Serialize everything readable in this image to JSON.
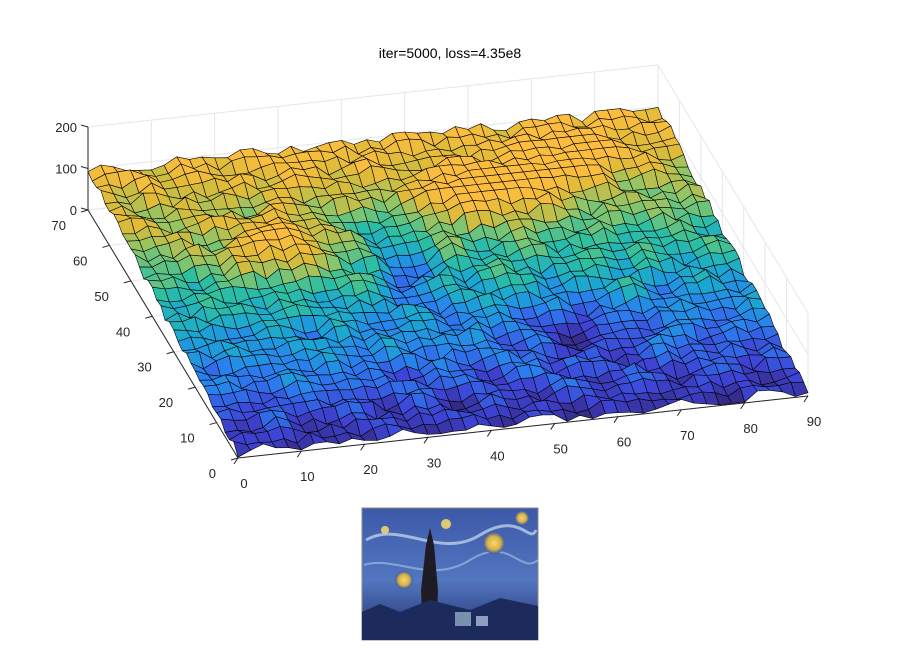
{
  "figure": {
    "title": "iter=5000, loss=4.35e8"
  },
  "chart_data": {
    "type": "surface",
    "title": "iter=5000, loss=4.35e8",
    "xlim": [
      0,
      90
    ],
    "ylim": [
      0,
      70
    ],
    "zlim": [
      0,
      200
    ],
    "x_ticks": [
      "0",
      "10",
      "20",
      "30",
      "40",
      "50",
      "60",
      "70",
      "80",
      "90"
    ],
    "y_ticks": [
      "0",
      "10",
      "20",
      "30",
      "40",
      "50",
      "60",
      "70"
    ],
    "z_ticks": [
      "0",
      "100",
      "200"
    ],
    "grid": true,
    "colormap": "parula",
    "colormap_stops": [
      "#352a87",
      "#3e44d6",
      "#2b7ef0",
      "#1aa6d4",
      "#2cbfa1",
      "#8cc56a",
      "#dcbb38",
      "#fcbd3e"
    ],
    "edge_color": "#000000"
  },
  "inset_image": {
    "name": "Starry Night style image"
  }
}
